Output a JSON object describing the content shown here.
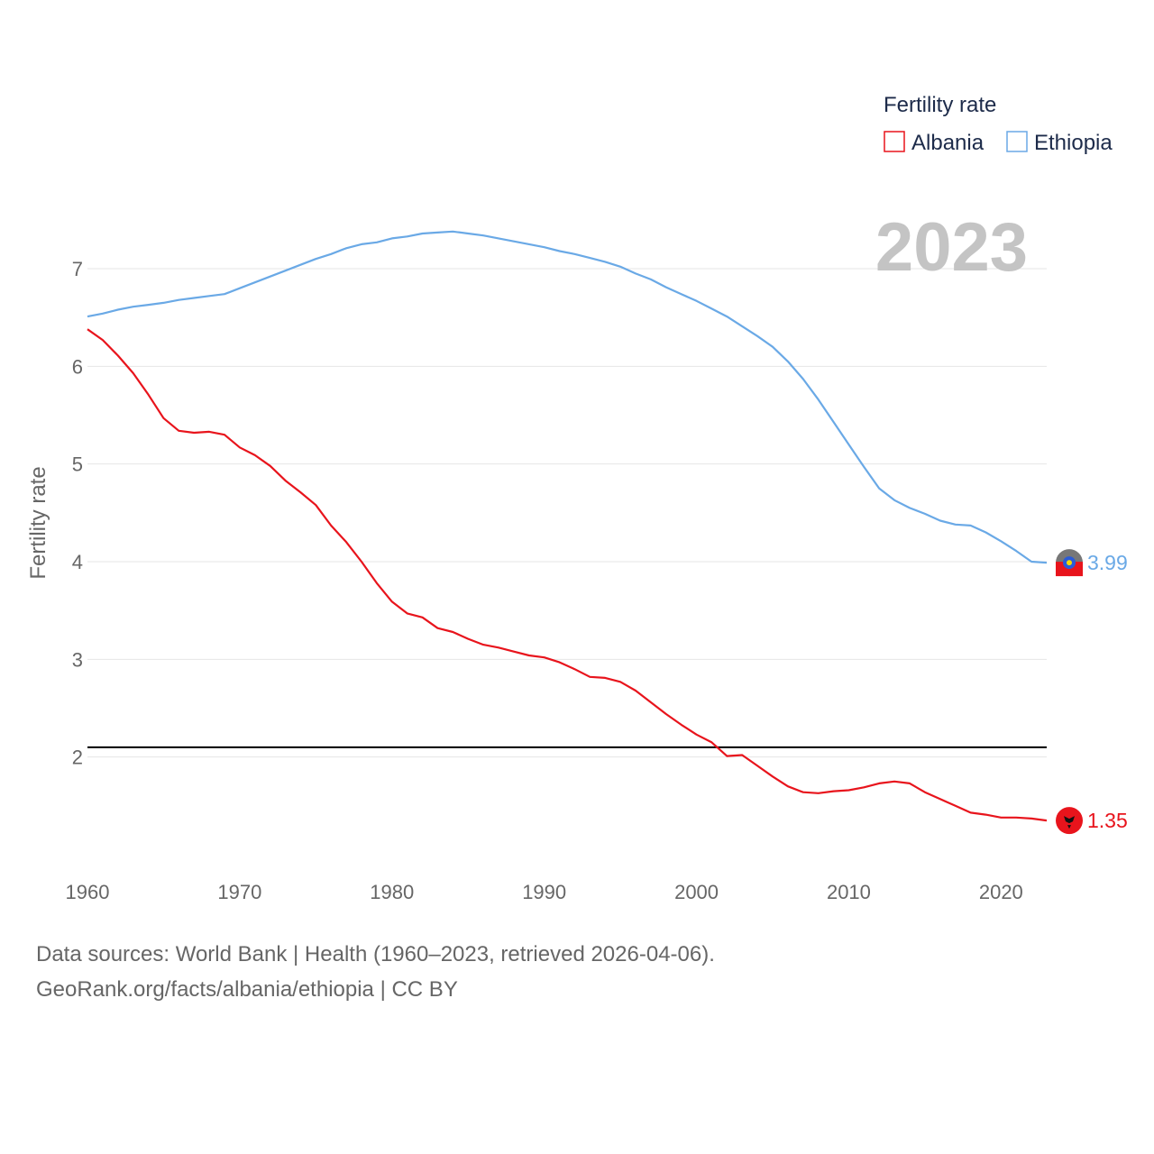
{
  "colors": {
    "albania": "#e8141c",
    "ethiopia": "#6aa9e6",
    "reference": "#000000",
    "grid": "#e6e6e6",
    "axis_text": "#666666"
  },
  "legend": {
    "title": "Fertility rate",
    "items": [
      "Albania",
      "Ethiopia"
    ]
  },
  "year_display": "2023",
  "footer": {
    "line1": "Data sources: World Bank | Health (1960–2023, retrieved 2026-04-06).",
    "line2": "GeoRank.org/facts/albania/ethiopia | CC BY"
  },
  "chart_data": {
    "type": "line",
    "title": "",
    "xlabel": "",
    "ylabel": "Fertility rate",
    "xlim": [
      1960,
      2023
    ],
    "ylim": [
      1.0,
      7.6
    ],
    "xticks": [
      1960,
      1970,
      1980,
      1990,
      2000,
      2010,
      2020
    ],
    "yticks": [
      2,
      3,
      4,
      5,
      6,
      7
    ],
    "grid": true,
    "legend_position": "top-right",
    "reference_line": 2.1,
    "x": [
      1960,
      1961,
      1962,
      1963,
      1964,
      1965,
      1966,
      1967,
      1968,
      1969,
      1970,
      1971,
      1972,
      1973,
      1974,
      1975,
      1976,
      1977,
      1978,
      1979,
      1980,
      1981,
      1982,
      1983,
      1984,
      1985,
      1986,
      1987,
      1988,
      1989,
      1990,
      1991,
      1992,
      1993,
      1994,
      1995,
      1996,
      1997,
      1998,
      1999,
      2000,
      2001,
      2002,
      2003,
      2004,
      2005,
      2006,
      2007,
      2008,
      2009,
      2010,
      2011,
      2012,
      2013,
      2014,
      2015,
      2016,
      2017,
      2018,
      2019,
      2020,
      2021,
      2022,
      2023
    ],
    "series": [
      {
        "name": "Albania",
        "end_label": "1.35",
        "values": [
          6.38,
          6.27,
          6.11,
          5.93,
          5.71,
          5.47,
          5.34,
          5.32,
          5.33,
          5.3,
          5.17,
          5.09,
          4.98,
          4.83,
          4.71,
          4.58,
          4.37,
          4.2,
          4.0,
          3.78,
          3.59,
          3.47,
          3.43,
          3.32,
          3.28,
          3.21,
          3.15,
          3.12,
          3.08,
          3.04,
          3.02,
          2.97,
          2.9,
          2.82,
          2.81,
          2.77,
          2.68,
          2.56,
          2.44,
          2.33,
          2.23,
          2.15,
          2.01,
          2.02,
          1.91,
          1.8,
          1.7,
          1.64,
          1.63,
          1.65,
          1.66,
          1.69,
          1.73,
          1.75,
          1.73,
          1.64,
          1.57,
          1.5,
          1.43,
          1.41,
          1.38,
          1.38,
          1.37,
          1.35
        ]
      },
      {
        "name": "Ethiopia",
        "end_label": "3.99",
        "values": [
          6.51,
          6.54,
          6.58,
          6.61,
          6.63,
          6.65,
          6.68,
          6.7,
          6.72,
          6.74,
          6.8,
          6.86,
          6.92,
          6.98,
          7.04,
          7.1,
          7.15,
          7.21,
          7.25,
          7.27,
          7.31,
          7.33,
          7.36,
          7.37,
          7.38,
          7.36,
          7.34,
          7.31,
          7.28,
          7.25,
          7.22,
          7.18,
          7.15,
          7.11,
          7.07,
          7.02,
          6.95,
          6.89,
          6.81,
          6.74,
          6.67,
          6.59,
          6.51,
          6.41,
          6.31,
          6.2,
          6.05,
          5.87,
          5.66,
          5.43,
          5.2,
          4.97,
          4.75,
          4.63,
          4.55,
          4.49,
          4.42,
          4.38,
          4.37,
          4.3,
          4.21,
          4.11,
          4.0,
          3.99
        ]
      }
    ]
  }
}
